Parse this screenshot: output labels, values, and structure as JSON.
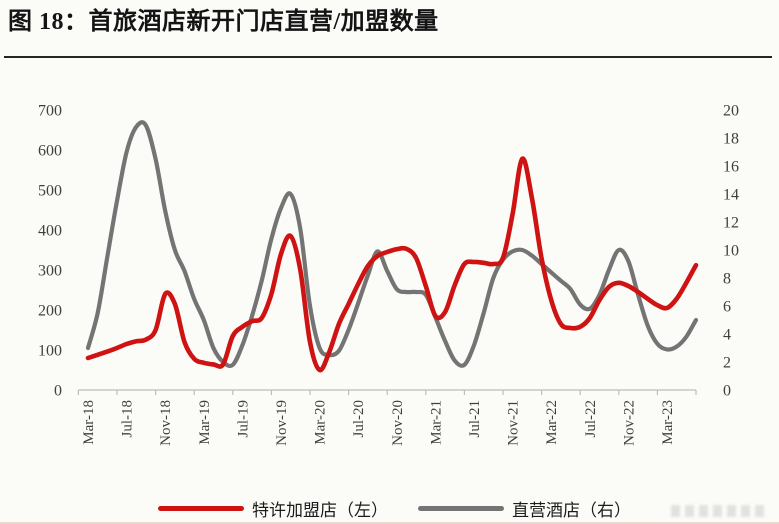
{
  "header": {
    "title": "图 18：首旅酒店新开门店直营/加盟数量"
  },
  "legend": {
    "items": [
      {
        "label": "特许加盟店（左）",
        "color": "#ce1312"
      },
      {
        "label": "直营酒店（右）",
        "color": "#747474"
      }
    ]
  },
  "chart_data": {
    "type": "line",
    "title": "首旅酒店新开门店直营/加盟数量",
    "frequency": "monthly",
    "grid": false,
    "legend_position": "bottom-center",
    "x_tick_labels": [
      "Mar-18",
      "Jul-18",
      "Nov-18",
      "Mar-19",
      "Jul-19",
      "Nov-19",
      "Mar-20",
      "Jul-20",
      "Nov-20",
      "Mar-21",
      "Jul-21",
      "Nov-21",
      "Mar-22",
      "Jul-22",
      "Nov-22",
      "Mar-23"
    ],
    "left_axis": {
      "min": 0,
      "max": 700,
      "step": 100,
      "ticks": [
        0,
        100,
        200,
        300,
        400,
        500,
        600,
        700
      ]
    },
    "right_axis": {
      "min": 0,
      "max": 20,
      "step": 2,
      "ticks": [
        0,
        2,
        4,
        6,
        8,
        10,
        12,
        14,
        16,
        18,
        20
      ]
    },
    "months": [
      "Mar-18",
      "Apr-18",
      "May-18",
      "Jun-18",
      "Jul-18",
      "Aug-18",
      "Sep-18",
      "Oct-18",
      "Nov-18",
      "Dec-18",
      "Jan-19",
      "Feb-19",
      "Mar-19",
      "Apr-19",
      "May-19",
      "Jun-19",
      "Jul-19",
      "Aug-19",
      "Sep-19",
      "Oct-19",
      "Nov-19",
      "Dec-19",
      "Jan-20",
      "Feb-20",
      "Mar-20",
      "Apr-20",
      "May-20",
      "Jun-20",
      "Jul-20",
      "Aug-20",
      "Sep-20",
      "Oct-20",
      "Nov-20",
      "Dec-20",
      "Jan-21",
      "Feb-21",
      "Mar-21",
      "Apr-21",
      "May-21",
      "Jun-21",
      "Jul-21",
      "Aug-21",
      "Sep-21",
      "Oct-21",
      "Nov-21",
      "Dec-21",
      "Jan-22",
      "Feb-22",
      "Mar-22",
      "Apr-22",
      "May-22",
      "Jun-22",
      "Jul-22",
      "Aug-22",
      "Sep-22",
      "Oct-22",
      "Nov-22",
      "Dec-22",
      "Jan-23",
      "Feb-23",
      "Mar-23",
      "Apr-23",
      "May-23",
      "Jun-23"
    ],
    "series": [
      {
        "name": "特许加盟店（左）",
        "axis": "left",
        "color": "#ce1312",
        "values": [
          80,
          88,
          96,
          105,
          115,
          122,
          126,
          150,
          240,
          215,
          120,
          78,
          68,
          64,
          64,
          135,
          158,
          172,
          180,
          240,
          340,
          385,
          300,
          120,
          50,
          95,
          165,
          215,
          265,
          310,
          335,
          345,
          352,
          353,
          330,
          260,
          185,
          195,
          262,
          315,
          320,
          318,
          315,
          330,
          440,
          578,
          480,
          330,
          225,
          165,
          155,
          158,
          180,
          225,
          258,
          268,
          260,
          245,
          228,
          212,
          205,
          228,
          268,
          312
        ]
      },
      {
        "name": "直营酒店（右）",
        "axis": "right",
        "color": "#747474",
        "values": [
          3,
          5.5,
          9.5,
          13.5,
          17,
          18.8,
          18.9,
          16.5,
          12.8,
          10,
          8.5,
          6.5,
          5,
          3,
          2,
          1.8,
          3.2,
          5.3,
          7.8,
          10.8,
          13,
          14,
          11.5,
          6,
          3,
          2.5,
          2.8,
          4.3,
          6.2,
          8.2,
          9.9,
          8.5,
          7.2,
          7,
          7,
          6.8,
          5.2,
          3.5,
          2.1,
          1.8,
          3.2,
          5.5,
          8,
          9.3,
          9.9,
          10,
          9.6,
          9,
          8.4,
          7.8,
          7.2,
          6.1,
          5.8,
          6.8,
          8.6,
          10,
          9.2,
          6.8,
          4.6,
          3.3,
          2.9,
          3.1,
          3.8,
          5
        ]
      }
    ]
  }
}
